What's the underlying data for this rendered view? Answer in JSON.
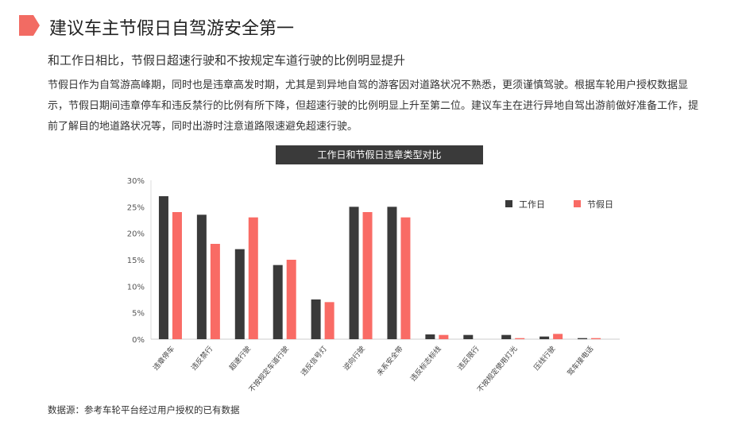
{
  "header": {
    "title": "建议车主节假日自驾游安全第一",
    "accent": "#f26b63"
  },
  "subtitle": "和工作日相比，节假日超速行驶和不按规定车道行驶的比例明显提升",
  "paragraph": "节假日作为自驾游高峰期，同时也是违章高发时期，尤其是到异地自驾的游客因对道路状况不熟悉，更须谨慎驾驶。根据车轮用户授权数据显示，节假日期间违章停车和违反禁行的比例有所下降，但超速行驶的比例明显上升至第二位。建议车主在进行异地自驾出游前做好准备工作，提前了解目的地道路状况等，同时出游时注意道路限速避免超速行驶。",
  "source": "数据源：参考车轮平台经过用户授权的已有数据",
  "chart_data": {
    "type": "bar",
    "title": "工作日和节假日违章类型对比",
    "categories": [
      "违章停车",
      "违反禁行",
      "超速行驶",
      "不按规定车道行驶",
      "违反信号灯",
      "逆向行驶",
      "未系安全带",
      "违反标志标线",
      "违反限行",
      "不按规定使用灯光",
      "压线行驶",
      "驾车接电话"
    ],
    "series": [
      {
        "name": "工作日",
        "color": "#3a3a3a",
        "values": [
          27,
          23.5,
          17,
          14,
          7.5,
          25,
          25,
          0.9,
          0.8,
          0.8,
          0.5,
          0.2
        ]
      },
      {
        "name": "节假日",
        "color": "#f96b65",
        "values": [
          24,
          18,
          23,
          15,
          7,
          24,
          23,
          0.8,
          0,
          0.2,
          1.0,
          0.2
        ]
      }
    ],
    "yticks": [
      "0%",
      "5%",
      "10%",
      "15%",
      "20%",
      "25%",
      "30%"
    ],
    "ylim": [
      0,
      30
    ],
    "legend": "top-right",
    "grid": false
  }
}
